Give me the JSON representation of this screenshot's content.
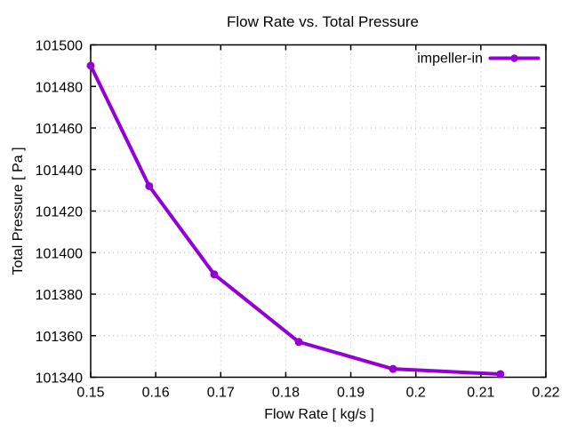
{
  "window": {
    "background": "#ffffff"
  },
  "chart_data": {
    "type": "line",
    "title": "Flow Rate vs. Total Pressure",
    "xlabel": "Flow Rate [ kg/s ]",
    "ylabel": "Total Pressure [ Pa ]",
    "xlim": [
      0.15,
      0.22
    ],
    "ylim": [
      101340,
      101500
    ],
    "xticks": [
      0.15,
      0.16,
      0.17,
      0.18,
      0.19,
      0.2,
      0.21,
      0.22
    ],
    "xtick_labels": [
      "0.15",
      "0.16",
      "0.17",
      "0.18",
      "0.19",
      "0.2",
      "0.21",
      "0.22"
    ],
    "yticks": [
      101340,
      101360,
      101380,
      101400,
      101420,
      101440,
      101460,
      101480,
      101500
    ],
    "ytick_labels": [
      "101340",
      "101360",
      "101380",
      "101400",
      "101420",
      "101440",
      "101460",
      "101480",
      "101500"
    ],
    "grid": true,
    "legend": {
      "position": "top-right-inside",
      "entries": [
        "impeller-in"
      ]
    },
    "series": [
      {
        "name": "impeller-in",
        "color": "#9400d3",
        "marker": "circle",
        "x": [
          0.15,
          0.159,
          0.169,
          0.182,
          0.1965,
          0.213
        ],
        "y": [
          101490,
          101432,
          101389.5,
          101357,
          101344,
          101341.5
        ]
      }
    ],
    "colors": {
      "background": "#ffffff",
      "axis": "#000000",
      "grid": "#b8b8b8",
      "text": "#000000"
    }
  }
}
